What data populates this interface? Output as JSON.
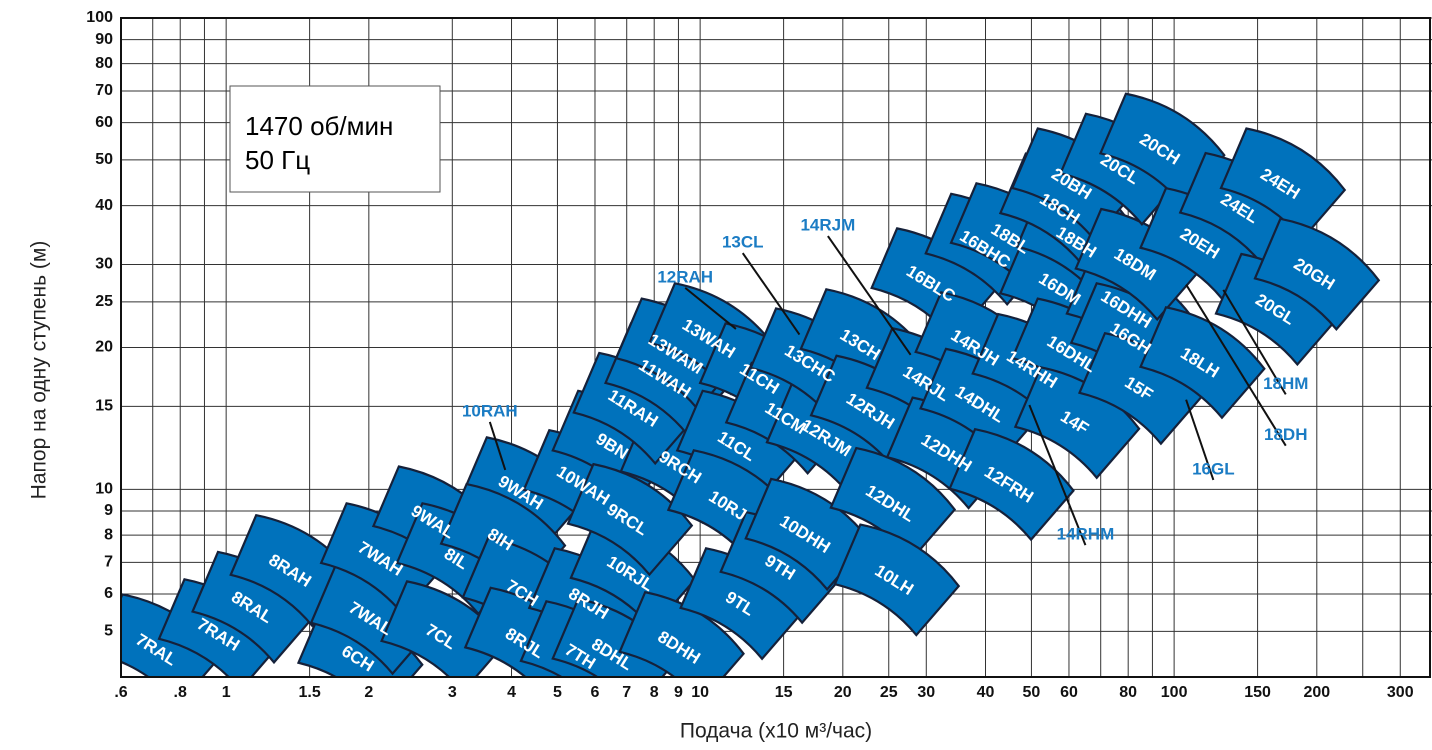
{
  "chart_data": {
    "type": "region",
    "box_lines": [
      "1470 об/мин",
      "50 Гц"
    ],
    "xlabel": "Подача (x10 м³/час)",
    "ylabel": "Напор на одну ступень (м)",
    "log_x": true,
    "log_y": true,
    "grid": true,
    "color": "#0072bc",
    "callout_color": "#1b7cc4",
    "xlim": [
      0.6,
      350
    ],
    "ylim": [
      4,
      100
    ],
    "xticks": [
      {
        "value": 0.6,
        "label": ".6"
      },
      {
        "value": 0.8,
        "label": ".8"
      },
      1,
      1.5,
      2,
      3,
      4,
      5,
      6,
      7,
      8,
      9,
      10,
      15,
      20,
      25,
      30,
      40,
      50,
      60,
      80,
      100,
      150,
      200,
      300
    ],
    "xminor": [
      0.7,
      0.9,
      70,
      90,
      250
    ],
    "yticks": [
      5,
      6,
      7,
      8,
      9,
      10,
      15,
      20,
      25,
      30,
      40,
      50,
      60,
      70,
      80,
      90,
      100
    ],
    "pumps": [
      {
        "label": "7RAL",
        "x": 0.71,
        "y": 4.55
      },
      {
        "label": "7RAH",
        "x": 0.96,
        "y": 4.9
      },
      {
        "label": "8RAL",
        "x": 1.13,
        "y": 5.6
      },
      {
        "label": "8RAH",
        "x": 1.36,
        "y": 6.7
      },
      {
        "label": "6CH",
        "x": 1.89,
        "y": 4.36
      },
      {
        "label": "7WAL",
        "x": 2.01,
        "y": 5.3
      },
      {
        "label": "7WAH",
        "x": 2.11,
        "y": 7.1
      },
      {
        "label": "9WAL",
        "x": 2.72,
        "y": 8.5
      },
      {
        "label": "7CL",
        "x": 2.83,
        "y": 4.85
      },
      {
        "label": "8IL",
        "x": 3.05,
        "y": 7.1
      },
      {
        "label": "9WAH",
        "x": 4.17,
        "y": 9.8
      },
      {
        "label": "8IH",
        "x": 3.78,
        "y": 7.8
      },
      {
        "label": "7CH",
        "x": 4.2,
        "y": 6.0
      },
      {
        "label": "8RJL",
        "x": 4.25,
        "y": 4.7
      },
      {
        "label": "8RJH",
        "x": 5.8,
        "y": 5.7
      },
      {
        "label": "7TH",
        "x": 5.57,
        "y": 4.4
      },
      {
        "label": "8DHL",
        "x": 6.5,
        "y": 4.45
      },
      {
        "label": "10WAH",
        "x": 5.65,
        "y": 10.15
      },
      {
        "label": "9BN",
        "x": 6.5,
        "y": 12.3
      },
      {
        "label": "10RJL",
        "x": 7.1,
        "y": 6.6
      },
      {
        "label": "9RCL",
        "x": 7.0,
        "y": 8.6
      },
      {
        "label": "9RCH",
        "x": 9.05,
        "y": 11.1
      },
      {
        "label": "8DHH",
        "x": 9.0,
        "y": 4.6
      },
      {
        "label": "11RAH",
        "x": 7.2,
        "y": 14.8
      },
      {
        "label": "11WAH",
        "x": 8.4,
        "y": 17.1
      },
      {
        "label": "13WAM",
        "x": 8.85,
        "y": 19.3
      },
      {
        "label": "13WAH",
        "x": 10.4,
        "y": 20.8
      },
      {
        "label": "11CL",
        "x": 11.9,
        "y": 12.3
      },
      {
        "label": "10RJ",
        "x": 11.4,
        "y": 9.2
      },
      {
        "label": "9TL",
        "x": 12.1,
        "y": 5.7
      },
      {
        "label": "11CH",
        "x": 13.3,
        "y": 17.1
      },
      {
        "label": "11CM",
        "x": 15.1,
        "y": 14.1
      },
      {
        "label": "9TH",
        "x": 14.7,
        "y": 6.8
      },
      {
        "label": "10DHH",
        "x": 16.6,
        "y": 8.0
      },
      {
        "label": "12RJM",
        "x": 18.4,
        "y": 12.8
      },
      {
        "label": "13CHC",
        "x": 17.0,
        "y": 18.4
      },
      {
        "label": "13CH",
        "x": 21.7,
        "y": 20.2
      },
      {
        "label": "12RJH",
        "x": 22.8,
        "y": 14.6
      },
      {
        "label": "12DHL",
        "x": 25.1,
        "y": 9.3
      },
      {
        "label": "10LH",
        "x": 25.6,
        "y": 6.4
      },
      {
        "label": "16BLC",
        "x": 30.6,
        "y": 27.2
      },
      {
        "label": "14RJL",
        "x": 29.9,
        "y": 16.7
      },
      {
        "label": "12DHH",
        "x": 33,
        "y": 11.9
      },
      {
        "label": "14RJH",
        "x": 37.9,
        "y": 19.9
      },
      {
        "label": "14DHL",
        "x": 38.8,
        "y": 15.1
      },
      {
        "label": "12FRH",
        "x": 44.7,
        "y": 10.2
      },
      {
        "label": "16BHC",
        "x": 39.8,
        "y": 32.2
      },
      {
        "label": "14RHH",
        "x": 50,
        "y": 17.9
      },
      {
        "label": "18BL",
        "x": 45,
        "y": 33.9
      },
      {
        "label": "16DM",
        "x": 57.2,
        "y": 26.5
      },
      {
        "label": "16DHL",
        "x": 60.6,
        "y": 19.3
      },
      {
        "label": "14F",
        "x": 61.5,
        "y": 13.8
      },
      {
        "label": "18BH",
        "x": 62,
        "y": 33.3
      },
      {
        "label": "18CH",
        "x": 57.2,
        "y": 39.2
      },
      {
        "label": "20BH",
        "x": 60.6,
        "y": 44.3
      },
      {
        "label": "16DHH",
        "x": 79,
        "y": 24
      },
      {
        "label": "16GH",
        "x": 80.7,
        "y": 20.8
      },
      {
        "label": "15F",
        "x": 84,
        "y": 16.3
      },
      {
        "label": "18DM",
        "x": 82.5,
        "y": 29.9
      },
      {
        "label": "20CL",
        "x": 76.6,
        "y": 47.6
      },
      {
        "label": "20CH",
        "x": 93,
        "y": 52.5
      },
      {
        "label": "18LH",
        "x": 113,
        "y": 18.5
      },
      {
        "label": "20EH",
        "x": 113,
        "y": 33.1
      },
      {
        "label": "24EL",
        "x": 137,
        "y": 39.3
      },
      {
        "label": "20GL",
        "x": 163,
        "y": 24
      },
      {
        "label": "24EH",
        "x": 167,
        "y": 44.3
      },
      {
        "label": "20GH",
        "x": 197,
        "y": 28.5
      }
    ],
    "callouts": [
      {
        "label": "10RAH",
        "x": 3.6,
        "y": 14.6,
        "tx": 3.88,
        "ty": 11
      },
      {
        "label": "12RAH",
        "x": 9.3,
        "y": 28.1,
        "tx": 11.9,
        "ty": 21.9
      },
      {
        "label": "13CL",
        "x": 12.3,
        "y": 33.3,
        "tx": 16.2,
        "ty": 21.3
      },
      {
        "label": "14RJM",
        "x": 18.6,
        "y": 36.2,
        "tx": 27.8,
        "ty": 19.3
      },
      {
        "label": "14RHM",
        "x": 65,
        "y": 8.0,
        "tx": 49.5,
        "ty": 15.1
      },
      {
        "label": "18HM",
        "x": 172,
        "y": 16.7,
        "tx": 127,
        "ty": 26.5
      },
      {
        "label": "18DH",
        "x": 172,
        "y": 13,
        "tx": 106,
        "ty": 27.2
      },
      {
        "label": "16GL",
        "x": 121,
        "y": 11,
        "tx": 106,
        "ty": 15.5
      }
    ]
  }
}
